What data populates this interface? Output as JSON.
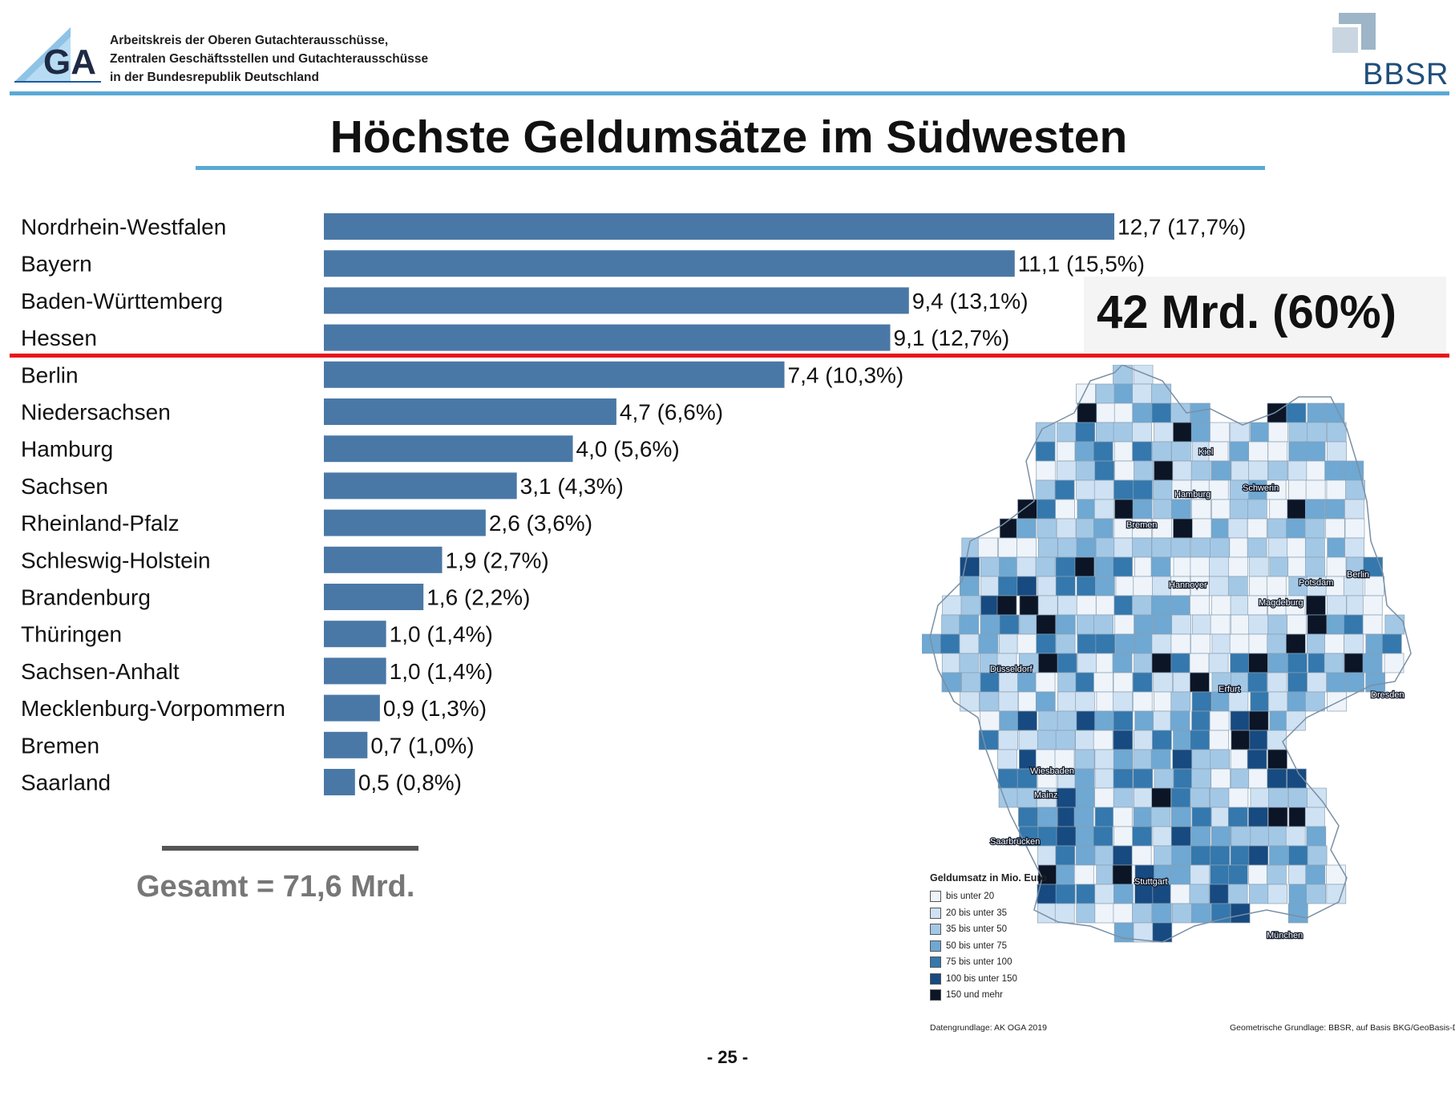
{
  "header": {
    "org_lines": [
      "Arbeitskreis der Oberen Gutachterausschüsse,",
      "Zentralen Geschäftsstellen und Gutachterausschüsse",
      "in der Bundesrepublik Deutschland"
    ],
    "gca_logo_text": "GA",
    "bbsr_logo_text": "BBSR",
    "colors": {
      "rule": "#5aa9d6",
      "bbsr": "#1f4e79"
    }
  },
  "page_title": "Höchste Geldumsätze im Südwesten",
  "chart_data": {
    "type": "bar",
    "orientation": "horizontal",
    "categories": [
      "Nordrhein-Westfalen",
      "Bayern",
      "Baden-Württemberg",
      "Hessen",
      "Berlin",
      "Niedersachsen",
      "Hamburg",
      "Sachsen",
      "Rheinland-Pfalz",
      "Schleswig-Holstein",
      "Brandenburg",
      "Thüringen",
      "Sachsen-Anhalt",
      "Mecklenburg-Vorpommern",
      "Bremen",
      "Saarland"
    ],
    "values": [
      12.7,
      11.1,
      9.4,
      9.1,
      7.4,
      4.7,
      4.0,
      3.1,
      2.6,
      1.9,
      1.6,
      1.0,
      1.0,
      0.9,
      0.7,
      0.5
    ],
    "data_labels": [
      "12,7 (17,7%)",
      "11,1 (15,5%)",
      "9,4 (13,1%)",
      "9,1 (12,7%)",
      "7,4 (10,3%)",
      "4,7 (6,6%)",
      "4,0 (5,6%)",
      "3,1 (4,3%)",
      "2,6 (3,6%)",
      "1,9 (2,7%)",
      "1,6 (2,2%)",
      "1,0 (1,4%)",
      "1,0 (1,4%)",
      "0,9 (1,3%)",
      "0,7 (1,0%)",
      "0,5 (0,8%)"
    ],
    "xlim": [
      0,
      12.7
    ],
    "bar_color": "#4a78a6",
    "grid": false,
    "legend": "none"
  },
  "highlight": {
    "text": "42 Mrd. (60%)",
    "line_color": "#e8141b",
    "after_category_count": 4
  },
  "map": {
    "labels": [
      "Kiel",
      "Hamburg",
      "Schwerin",
      "Bremen",
      "Hannover",
      "Berlin",
      "Potsdam",
      "Magdeburg",
      "Düsseldorf",
      "Erfurt",
      "Dresden",
      "Wiesbaden",
      "Mainz",
      "Saarbrücken",
      "Stuttgart",
      "München"
    ],
    "legend_title": "Geldumsatz in Mio. Euro",
    "legend_items": [
      {
        "label": "bis unter 20",
        "color": "#eef4fa"
      },
      {
        "label": "20 bis unter 35",
        "color": "#cfe2f3"
      },
      {
        "label": "35 bis unter 50",
        "color": "#a3c8e6"
      },
      {
        "label": "50 bis unter 75",
        "color": "#6fa8d2"
      },
      {
        "label": "75 bis unter 100",
        "color": "#3478ad"
      },
      {
        "label": "100 bis unter 150",
        "color": "#174a80"
      },
      {
        "label": "150 und mehr",
        "color": "#0b1526"
      }
    ],
    "source_left": "Datengrundlage: AK OGA  2019",
    "source_right": "Geometrische Grundlage: BBSR, auf Basis BKG/GeoBasis-DE"
  },
  "total_text": "Gesamt = 71,6 Mrd.",
  "page_number": "- 25 -"
}
